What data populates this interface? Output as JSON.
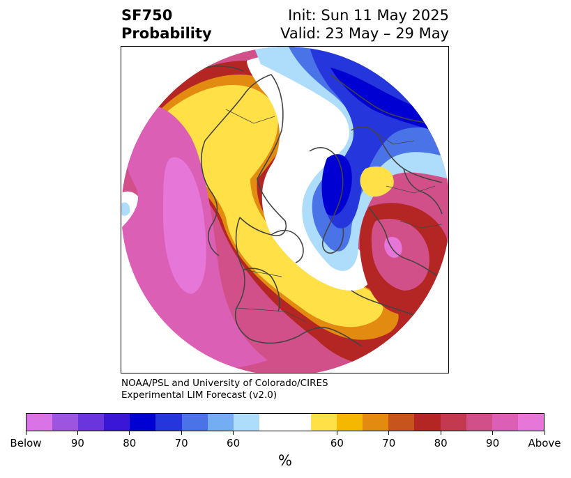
{
  "title": {
    "line1": "SF750",
    "line2": "Probability",
    "init": "Init: Sun 11 May 2025",
    "valid": "Valid: 23 May – 29 May"
  },
  "credit": {
    "line1": "NOAA/PSL and University of Colorado/CIRES",
    "line2": "Experimental LIM Forecast (v2.0)"
  },
  "colorbar": {
    "unit": "%",
    "colors": [
      "#d973e6",
      "#9d55e0",
      "#6a35dc",
      "#3a16d6",
      "#0000d2",
      "#2436dc",
      "#4a73e8",
      "#74aef2",
      "#aedcfb",
      "#ffffff",
      "#ffe047",
      "#f4b800",
      "#e38a10",
      "#c6541c",
      "#b42624",
      "#c23950",
      "#d2508a",
      "#dc5fb6",
      "#e676d8"
    ],
    "tick_labels": [
      "Below",
      "90",
      "80",
      "70",
      "60",
      "60",
      "70",
      "80",
      "90",
      "Above"
    ]
  },
  "map": {
    "projection": "north-polar-stereographic",
    "colors": {
      "above_max": "#e676d8",
      "above_90": "#dc5fb6",
      "above_85": "#d2508a",
      "above_80": "#c23950",
      "above_75": "#b42624",
      "above_70": "#c6541c",
      "above_65": "#e38a10",
      "above_60": "#f4b800",
      "above_55": "#ffe047",
      "neutral": "#ffffff",
      "below_55": "#aedcfb",
      "below_60": "#74aef2",
      "below_65": "#4a73e8",
      "below_70": "#2436dc",
      "below_75": "#0000d2",
      "below_max": "#9d55e0",
      "coastline": "#444444"
    }
  }
}
